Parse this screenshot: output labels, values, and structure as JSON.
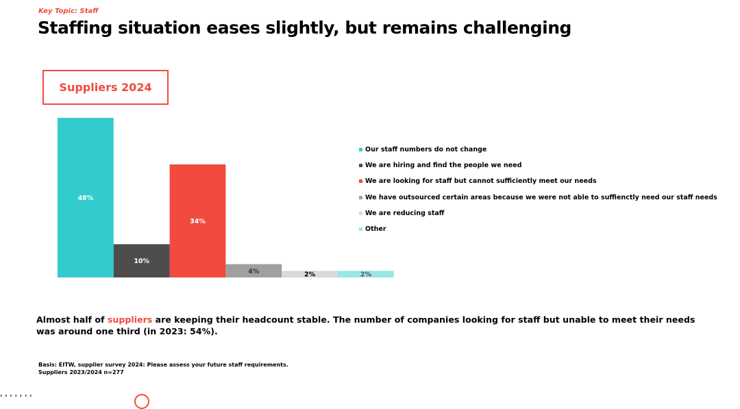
{
  "header": {
    "kicker": "Key Topic: Staff",
    "title": "Staffing situation eases slightly, but remains challenging"
  },
  "badge": {
    "label": "Suppliers 2024"
  },
  "chart_data": {
    "type": "bar",
    "title": "Suppliers 2024",
    "categories": [
      "Our staff numbers do not change",
      "We are hiring and find the people we need",
      "We are looking for staff but cannot sufficiently meet our needs",
      "We have outsourced certain areas because we were not able to suffienctly need our staff needs",
      "We are reducing staff",
      "Other"
    ],
    "values": [
      48,
      10,
      34,
      4,
      2,
      2
    ],
    "labels": [
      "48%",
      "10%",
      "34%",
      "4%",
      "2%",
      "2%"
    ],
    "colors": [
      "#33cccc",
      "#4d4d4d",
      "#f14a3e",
      "#a0a0a0",
      "#d9d9d9",
      "#99e6e6"
    ],
    "label_colors": [
      "#ffffff",
      "#ffffff",
      "#ffffff",
      "#333333",
      "#000000",
      "#555555"
    ],
    "ylim": [
      0,
      48
    ],
    "xlabel": "",
    "ylabel": "",
    "legend": "right"
  },
  "summary": {
    "before": "Almost half of ",
    "highlight": "suppliers",
    "after": " are keeping their headcount stable. The number of companies looking for staff but unable to meet their needs was around one third (in 2023: 54%)."
  },
  "basis": {
    "line1": "Basis: EITW, supplier survey 2024: Please assess your future staff requirements.",
    "line2": "Suppliers 2023/2024 n=277"
  },
  "footer": {
    "partial_text": "' ' ' ' ' ' '"
  }
}
